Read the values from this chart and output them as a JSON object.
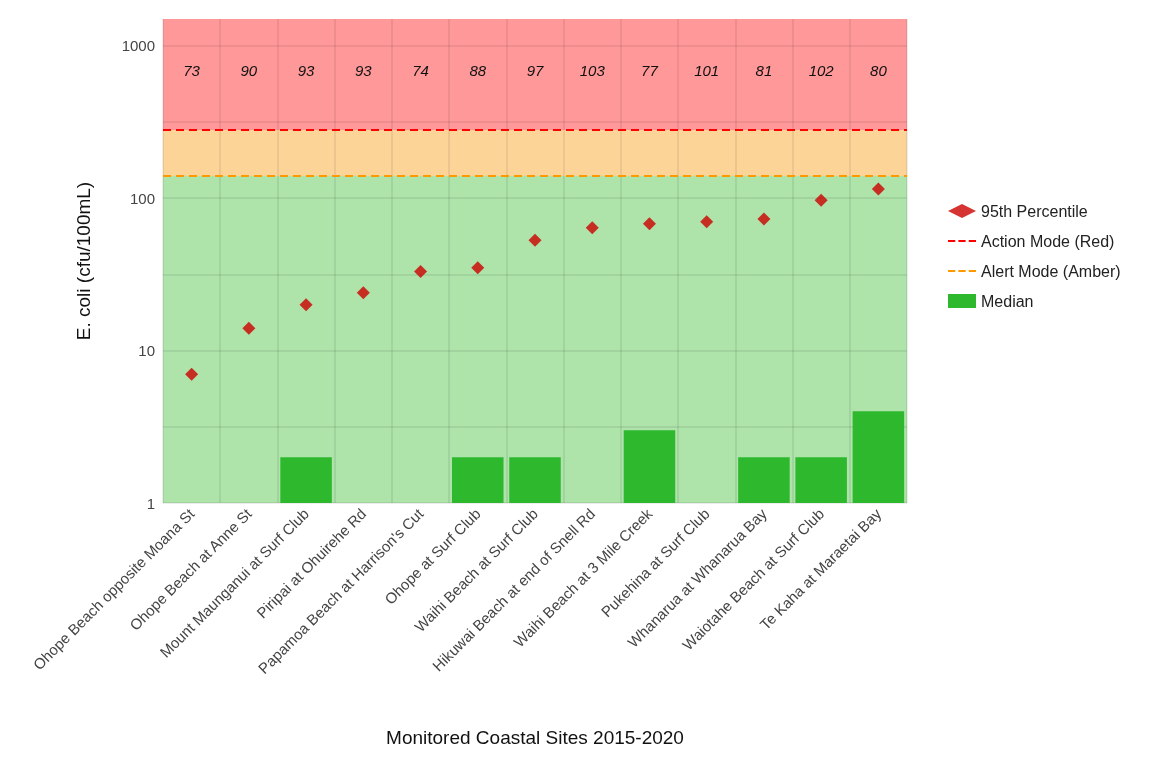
{
  "chart_data": {
    "type": "bar",
    "xlabel": "Monitored Coastal Sites 2015-2020",
    "ylabel": "E. coli (cfu/100mL)",
    "categories": [
      "Ohope Beach opposite Moana St",
      "Ohope Beach at Anne St",
      "Mount Maunganui at Surf Club",
      "Piripai at Ohuirehe Rd",
      "Papamoa Beach at Harrison's Cut",
      "Ohope at Surf Club",
      "Waihi Beach at Surf Club",
      "Hikuwai Beach at end of Snell Rd",
      "Waihi Beach at 3 Mile Creek",
      "Pukehina at Surf Club",
      "Whanarua at Whanarua Bay",
      "Waiotahe Beach at Surf Club",
      "Te Kaha at Maraetai Bay"
    ],
    "series": [
      {
        "name": "95th Percentile",
        "type": "scatter",
        "color": "#cc0000",
        "marker": "diamond",
        "values": [
          7,
          14,
          20,
          24,
          33,
          35,
          53,
          64,
          68,
          70,
          73,
          97,
          115
        ]
      },
      {
        "name": "Median",
        "color": "#2eb82e",
        "values": [
          1,
          1,
          2,
          1,
          1,
          2,
          2,
          1,
          3,
          1,
          2,
          2,
          4
        ]
      }
    ],
    "ref_lines": [
      {
        "axis": "y",
        "value": 280,
        "label": "Action Mode (Red)",
        "color": "#ff0000",
        "line_style": "dashed"
      },
      {
        "axis": "y",
        "value": 140,
        "label": "Alert Mode (Amber)",
        "color": "#ff9900",
        "line_style": "dashed"
      }
    ],
    "bands": [
      {
        "axis": "y",
        "from": 1,
        "to": 140,
        "color": "#aee3aa"
      },
      {
        "axis": "y",
        "from": 140,
        "to": 280,
        "color": "#fdd498"
      },
      {
        "axis": "y",
        "from": 280,
        "to": 1500,
        "color": "#ff9898"
      }
    ],
    "annotations": [
      "73",
      "90",
      "93",
      "93",
      "74",
      "88",
      "97",
      "103",
      "77",
      "101",
      "81",
      "102",
      "80"
    ],
    "log": "y",
    "ylim": [
      1,
      1500
    ],
    "yticks": [
      1,
      {
        "value": 3.16,
        "label": null
      },
      10,
      {
        "value": 31.6,
        "label": null
      },
      100,
      {
        "value": 316,
        "label": null
      },
      1000
    ],
    "grid": true,
    "legend": "right"
  }
}
